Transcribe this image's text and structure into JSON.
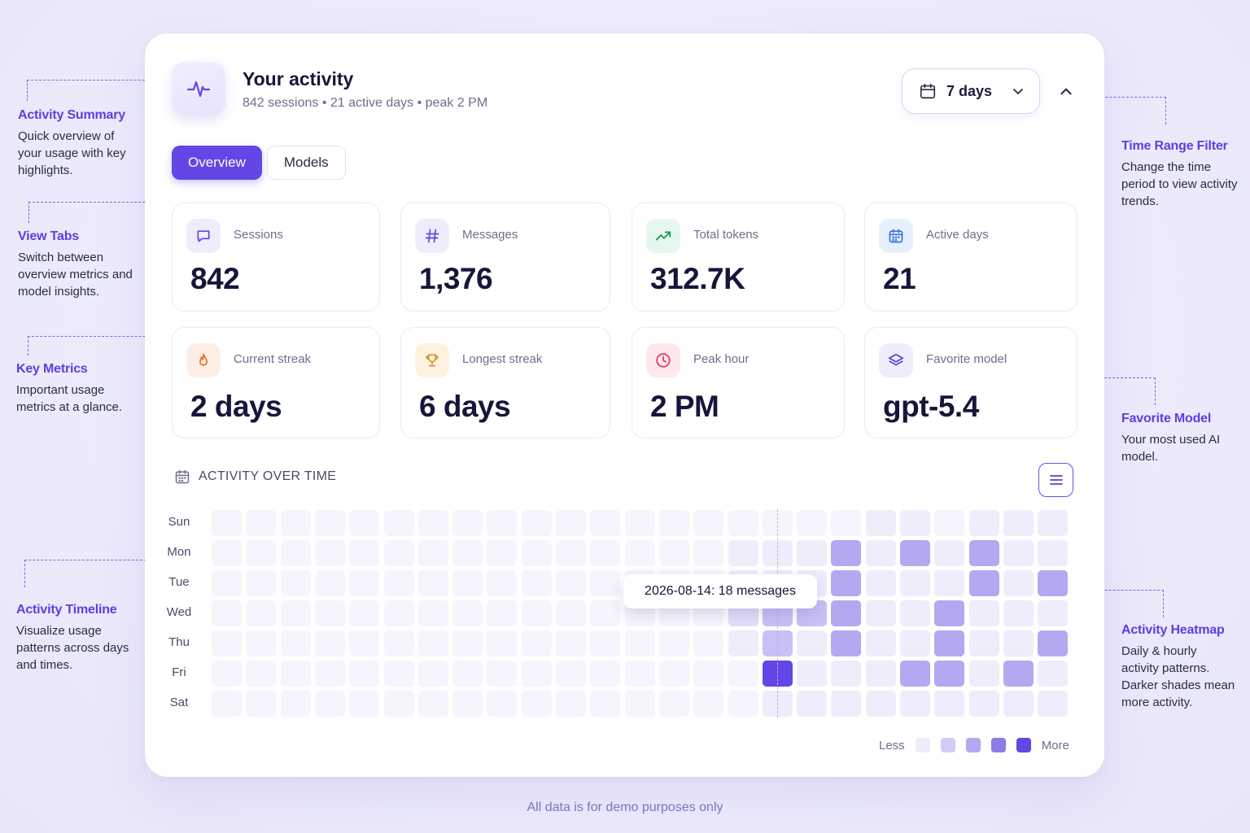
{
  "header": {
    "title": "Your activity",
    "subtitle": "842 sessions • 21 active days • peak 2 PM",
    "range_label": "7 days"
  },
  "tabs": [
    {
      "label": "Overview",
      "active": true
    },
    {
      "label": "Models",
      "active": false
    }
  ],
  "metrics": [
    {
      "label": "Sessions",
      "value": "842",
      "icon": "chat-bubble-icon"
    },
    {
      "label": "Messages",
      "value": "1,376",
      "icon": "hash-icon"
    },
    {
      "label": "Total tokens",
      "value": "312.7K",
      "icon": "trending-up-icon"
    },
    {
      "label": "Active days",
      "value": "21",
      "icon": "calendar-icon"
    },
    {
      "label": "Current streak",
      "value": "2 days",
      "icon": "flame-icon"
    },
    {
      "label": "Longest streak",
      "value": "6 days",
      "icon": "trophy-icon"
    },
    {
      "label": "Peak hour",
      "value": "2 PM",
      "icon": "clock-icon"
    },
    {
      "label": "Favorite model",
      "value": "gpt-5.4",
      "icon": "layers-icon"
    }
  ],
  "activity": {
    "title": "ACTIVITY OVER TIME",
    "days": [
      "Sun",
      "Mon",
      "Tue",
      "Wed",
      "Thu",
      "Fri",
      "Sat"
    ],
    "tooltip": "2026-08-14:  18 messages",
    "legend_less": "Less",
    "legend_more": "More",
    "levels": [
      "#f6f5fd",
      "#efedfc",
      "#e3defb",
      "#c9c0f6",
      "#b4a8f1",
      "#6445e6"
    ],
    "heatmap": [
      [
        0,
        0,
        0,
        0,
        0,
        0,
        0,
        0,
        0,
        0,
        0,
        0,
        0,
        0,
        0,
        0,
        0,
        0,
        0,
        1,
        1,
        0,
        1,
        1,
        1
      ],
      [
        0,
        0,
        0,
        0,
        0,
        0,
        0,
        0,
        0,
        0,
        0,
        0,
        0,
        0,
        0,
        1,
        1,
        1,
        4,
        1,
        4,
        1,
        4,
        1,
        1
      ],
      [
        0,
        0,
        0,
        0,
        0,
        0,
        0,
        0,
        0,
        0,
        0,
        0,
        0,
        0,
        0,
        1,
        1,
        1,
        4,
        1,
        1,
        1,
        4,
        1,
        4
      ],
      [
        0,
        0,
        0,
        0,
        0,
        0,
        0,
        0,
        0,
        0,
        0,
        0,
        0,
        0,
        0,
        2,
        3,
        3,
        4,
        1,
        1,
        4,
        1,
        1,
        1
      ],
      [
        0,
        0,
        0,
        0,
        0,
        0,
        0,
        0,
        0,
        0,
        0,
        0,
        0,
        0,
        0,
        1,
        3,
        1,
        4,
        1,
        1,
        4,
        1,
        1,
        4
      ],
      [
        0,
        0,
        0,
        0,
        0,
        0,
        0,
        0,
        0,
        0,
        0,
        0,
        0,
        0,
        0,
        0,
        5,
        1,
        1,
        1,
        4,
        4,
        1,
        4,
        1
      ],
      [
        0,
        0,
        0,
        0,
        0,
        0,
        0,
        0,
        0,
        0,
        0,
        0,
        0,
        0,
        0,
        0,
        1,
        1,
        1,
        1,
        1,
        1,
        1,
        1,
        1
      ]
    ]
  },
  "annotations": [
    {
      "title": "Activity Summary",
      "desc": "Quick overview of your usage with key highlights."
    },
    {
      "title": "View Tabs",
      "desc": "Switch between overview metrics and model insights."
    },
    {
      "title": "Key Metrics",
      "desc": "Important usage metrics at a glance."
    },
    {
      "title": "Activity Timeline",
      "desc": "Visualize usage patterns across days and times."
    },
    {
      "title": "Time Range Filter",
      "desc": "Change the time period to view activity trends."
    },
    {
      "title": "Favorite Model",
      "desc": "Your most used AI model."
    },
    {
      "title": "Activity Heatmap",
      "desc": "Daily & hourly activity patterns. Darker shades mean more activity."
    }
  ],
  "footer": "All data is for demo purposes only",
  "colors": {
    "accent": "#6445e6",
    "annotation": "#5b3fe0"
  }
}
